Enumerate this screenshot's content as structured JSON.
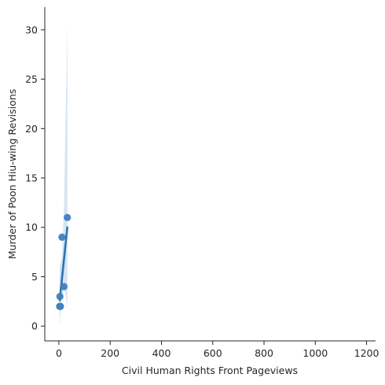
{
  "chart_data": {
    "type": "scatter",
    "title": "",
    "xlabel": "Civil Human Rights Front Pageviews",
    "ylabel": "Murder of Poon Hiu-wing Revisions",
    "xlim": [
      -55,
      1235
    ],
    "ylim": [
      -1.5,
      32.3
    ],
    "xticks": [
      0,
      200,
      400,
      600,
      800,
      1000,
      1200
    ],
    "yticks": [
      0,
      5,
      10,
      15,
      20,
      25,
      30
    ],
    "grid": false,
    "colors": {
      "points": "#3f7fbd",
      "line": "#2a74b5",
      "band": "#c5d9ec"
    },
    "points": [
      {
        "x": 3,
        "y": 2
      },
      {
        "x": 6,
        "y": 2
      },
      {
        "x": 4,
        "y": 3
      },
      {
        "x": 20,
        "y": 4
      },
      {
        "x": 12,
        "y": 9
      },
      {
        "x": 33,
        "y": 11
      }
    ],
    "regression": {
      "line": [
        {
          "x": 3,
          "y": 2.6
        },
        {
          "x": 33,
          "y": 10.0
        }
      ],
      "band_upper": [
        {
          "x": 3,
          "y": 6.0
        },
        {
          "x": 12,
          "y": 7.0
        },
        {
          "x": 20,
          "y": 12.0
        },
        {
          "x": 27,
          "y": 22.0
        },
        {
          "x": 33,
          "y": 30.6
        }
      ],
      "band_lower": [
        {
          "x": 3,
          "y": 0.0
        },
        {
          "x": 12,
          "y": 3.0
        },
        {
          "x": 20,
          "y": 4.0
        },
        {
          "x": 27,
          "y": 3.0
        },
        {
          "x": 33,
          "y": 1.6
        }
      ]
    }
  }
}
